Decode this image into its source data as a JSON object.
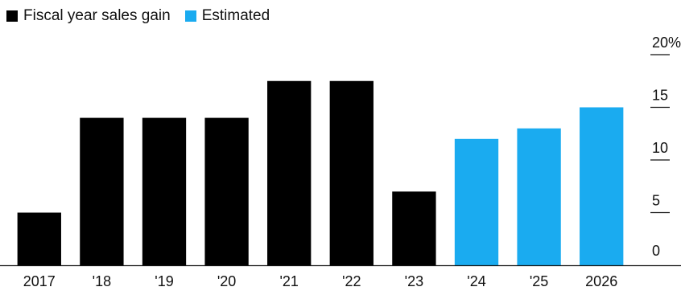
{
  "chart_data": {
    "type": "bar",
    "title": "",
    "xlabel": "",
    "ylabel": "",
    "categories": [
      "2017",
      "'18",
      "'19",
      "'20",
      "'21",
      "'22",
      "'23",
      "'24",
      "'25",
      "2026"
    ],
    "series": [
      {
        "name": "Fiscal year sales gain",
        "color": "#000000",
        "values": [
          5,
          14,
          14,
          14,
          17.5,
          17.5,
          7,
          null,
          null,
          null
        ]
      },
      {
        "name": "Estimated",
        "color": "#1AABF0",
        "values": [
          null,
          null,
          null,
          null,
          null,
          null,
          null,
          12,
          13,
          15
        ]
      }
    ],
    "ylim": [
      0,
      20
    ],
    "yticks": [
      {
        "value": 0,
        "label": "0"
      },
      {
        "value": 5,
        "label": "5"
      },
      {
        "value": 10,
        "label": "10"
      },
      {
        "value": 15,
        "label": "15"
      },
      {
        "value": 20,
        "label": "20%"
      }
    ],
    "grid": false,
    "legend_position": "top-left"
  }
}
